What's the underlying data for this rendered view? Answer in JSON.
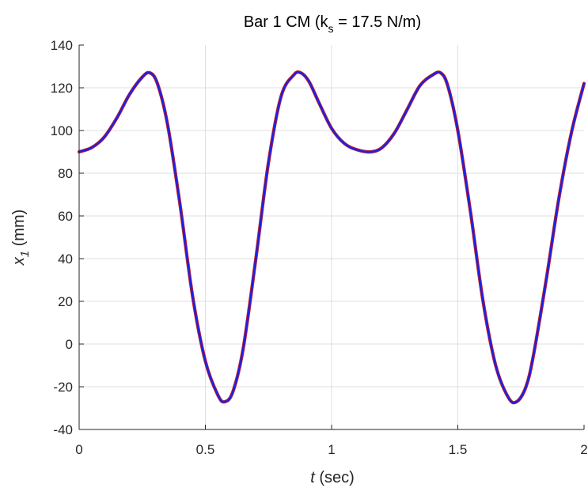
{
  "chart_data": {
    "type": "line",
    "title": {
      "prefix": "Bar 1 CM (k",
      "subscript": "s",
      "suffix": " = 17.5 N/m)"
    },
    "xlabel": {
      "var": "t",
      "rest": " (sec)"
    },
    "ylabel": {
      "var": "x",
      "subscript": "1",
      "rest": " (mm)"
    },
    "xlim": [
      0,
      2
    ],
    "ylim": [
      -40,
      140
    ],
    "xticks": [
      0,
      0.5,
      1,
      1.5,
      2
    ],
    "xtick_labels": [
      "0",
      "0.5",
      "1",
      "1.5",
      "2"
    ],
    "yticks": [
      -40,
      -20,
      0,
      20,
      40,
      60,
      80,
      100,
      120,
      140
    ],
    "ytick_labels": [
      "-40",
      "-20",
      "0",
      "20",
      "40",
      "60",
      "80",
      "100",
      "120",
      "140"
    ],
    "grid": true,
    "series": [
      {
        "color": "#2020e0",
        "x": [
          0,
          0.05,
          0.1,
          0.15,
          0.2,
          0.25,
          0.28,
          0.31,
          0.35,
          0.4,
          0.45,
          0.5,
          0.55,
          0.578,
          0.61,
          0.65,
          0.7,
          0.75,
          0.8,
          0.85,
          0.878,
          0.91,
          0.95,
          1.0,
          1.05,
          1.1,
          1.155,
          1.2,
          1.25,
          1.3,
          1.35,
          1.4,
          1.432,
          1.46,
          1.5,
          1.55,
          1.6,
          1.65,
          1.7,
          1.733,
          1.77,
          1.8,
          1.85,
          1.9,
          1.95,
          2.0
        ],
        "y": [
          90,
          92,
          97,
          106,
          117,
          125,
          127,
          122,
          103,
          65,
          22,
          -8,
          -24,
          -27,
          -22,
          -2,
          40,
          85,
          116,
          126,
          127,
          123,
          113,
          101,
          94,
          91,
          90,
          92,
          99,
          110,
          121,
          126,
          127,
          121,
          100,
          62,
          20,
          -10,
          -25,
          -27,
          -20,
          -5,
          30,
          68,
          99,
          122
        ]
      }
    ]
  }
}
